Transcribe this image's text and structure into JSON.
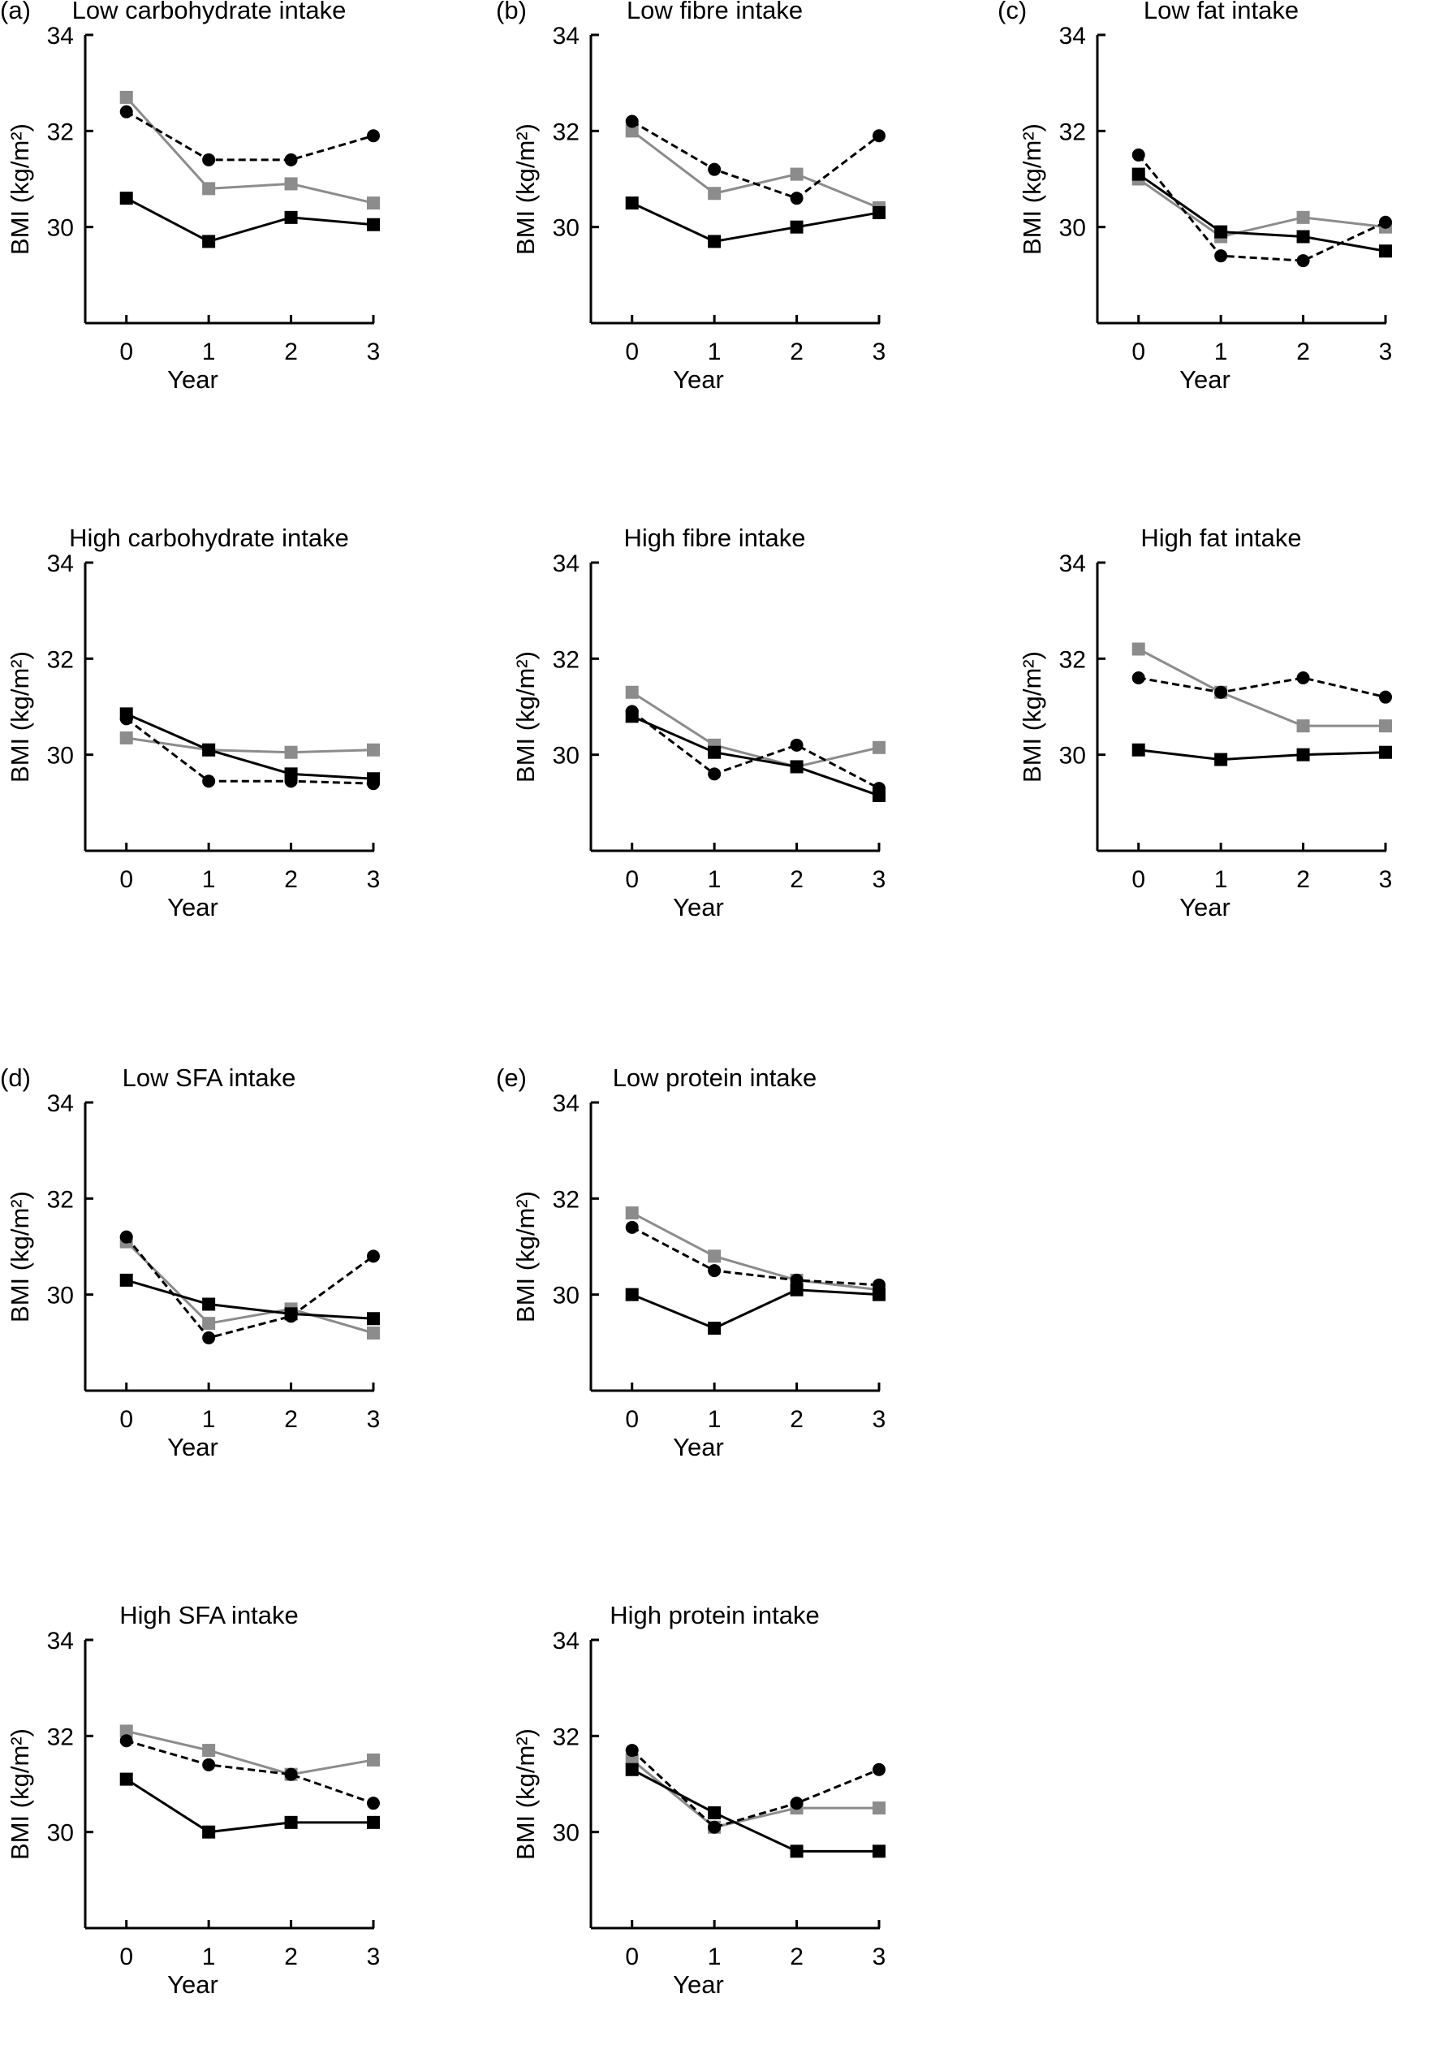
{
  "chart_data": [
    {
      "type": "line",
      "panel_label": "(a)",
      "title": "Low carbohydrate intake",
      "xlabel": "Year",
      "ylabel": "BMI (kg/m2)",
      "x": [
        0,
        1,
        2,
        3
      ],
      "xlim": [
        -0.5,
        3
      ],
      "ylim": [
        28,
        34
      ],
      "yticks": [
        30,
        32,
        34
      ],
      "grid": false,
      "series": [
        {
          "style": "black-circle-dashed",
          "values": [
            32.4,
            31.4,
            31.4,
            31.9
          ]
        },
        {
          "style": "grey-square-solid",
          "values": [
            32.7,
            30.8,
            30.9,
            30.5
          ]
        },
        {
          "style": "black-square-solid",
          "values": [
            30.6,
            29.7,
            30.2,
            30.05
          ]
        }
      ]
    },
    {
      "type": "line",
      "panel_label": "(b)",
      "title": "Low fibre intake",
      "xlabel": "Year",
      "ylabel": "BMI (kg/m2)",
      "x": [
        0,
        1,
        2,
        3
      ],
      "xlim": [
        -0.5,
        3
      ],
      "ylim": [
        28,
        34
      ],
      "yticks": [
        30,
        32,
        34
      ],
      "grid": false,
      "series": [
        {
          "style": "black-circle-dashed",
          "values": [
            32.2,
            31.2,
            30.6,
            31.9
          ]
        },
        {
          "style": "grey-square-solid",
          "values": [
            32.0,
            30.7,
            31.1,
            30.4
          ]
        },
        {
          "style": "black-square-solid",
          "values": [
            30.5,
            29.7,
            30.0,
            30.3
          ]
        }
      ]
    },
    {
      "type": "line",
      "panel_label": "(c)",
      "title": "Low fat intake",
      "xlabel": "Year",
      "ylabel": "BMI (kg/m2)",
      "x": [
        0,
        1,
        2,
        3
      ],
      "xlim": [
        -0.5,
        3
      ],
      "ylim": [
        28,
        34
      ],
      "yticks": [
        30,
        32,
        34
      ],
      "grid": false,
      "series": [
        {
          "style": "black-circle-dashed",
          "values": [
            31.5,
            29.4,
            29.3,
            30.1
          ]
        },
        {
          "style": "grey-square-solid",
          "values": [
            31.0,
            29.8,
            30.2,
            30.0
          ]
        },
        {
          "style": "black-square-solid",
          "values": [
            31.1,
            29.9,
            29.8,
            29.5
          ]
        }
      ]
    },
    {
      "type": "line",
      "panel_label": "",
      "title": "High carbohydrate intake",
      "xlabel": "Year",
      "ylabel": "BMI (kg/m2)",
      "x": [
        0,
        1,
        2,
        3
      ],
      "xlim": [
        -0.5,
        3
      ],
      "ylim": [
        28,
        34
      ],
      "yticks": [
        30,
        32,
        34
      ],
      "grid": false,
      "series": [
        {
          "style": "black-circle-dashed",
          "values": [
            30.75,
            29.45,
            29.45,
            29.4
          ]
        },
        {
          "style": "grey-square-solid",
          "values": [
            30.35,
            30.1,
            30.05,
            30.1
          ]
        },
        {
          "style": "black-square-solid",
          "values": [
            30.85,
            30.1,
            29.6,
            29.5
          ]
        }
      ]
    },
    {
      "type": "line",
      "panel_label": "",
      "title": "High fibre intake",
      "xlabel": "Year",
      "ylabel": "BMI (kg/m2)",
      "x": [
        0,
        1,
        2,
        3
      ],
      "xlim": [
        -0.5,
        3
      ],
      "ylim": [
        28,
        34
      ],
      "yticks": [
        30,
        32,
        34
      ],
      "grid": false,
      "series": [
        {
          "style": "black-circle-dashed",
          "values": [
            30.9,
            29.6,
            30.2,
            29.3
          ]
        },
        {
          "style": "grey-square-solid",
          "values": [
            31.3,
            30.2,
            29.75,
            30.15
          ]
        },
        {
          "style": "black-square-solid",
          "values": [
            30.8,
            30.05,
            29.75,
            29.15
          ]
        }
      ]
    },
    {
      "type": "line",
      "panel_label": "",
      "title": "High fat intake",
      "xlabel": "Year",
      "ylabel": "BMI (kg/m2)",
      "x": [
        0,
        1,
        2,
        3
      ],
      "xlim": [
        -0.5,
        3
      ],
      "ylim": [
        28,
        34
      ],
      "yticks": [
        30,
        32,
        34
      ],
      "grid": false,
      "series": [
        {
          "style": "black-circle-dashed",
          "values": [
            31.6,
            31.3,
            31.6,
            31.2
          ]
        },
        {
          "style": "grey-square-solid",
          "values": [
            32.2,
            31.3,
            30.6,
            30.6
          ]
        },
        {
          "style": "black-square-solid",
          "values": [
            30.1,
            29.9,
            30.0,
            30.05
          ]
        }
      ]
    },
    {
      "type": "line",
      "panel_label": "(d)",
      "title": "Low SFA intake",
      "xlabel": "Year",
      "ylabel": "BMI (kg/m2)",
      "x": [
        0,
        1,
        2,
        3
      ],
      "xlim": [
        -0.5,
        3
      ],
      "ylim": [
        28,
        34
      ],
      "yticks": [
        30,
        32,
        34
      ],
      "grid": false,
      "series": [
        {
          "style": "black-circle-dashed",
          "values": [
            31.2,
            29.1,
            29.55,
            30.8
          ]
        },
        {
          "style": "grey-square-solid",
          "values": [
            31.1,
            29.4,
            29.7,
            29.2
          ]
        },
        {
          "style": "black-square-solid",
          "values": [
            30.3,
            29.8,
            29.6,
            29.5
          ]
        }
      ]
    },
    {
      "type": "line",
      "panel_label": "(e)",
      "title": "Low protein intake",
      "xlabel": "Year",
      "ylabel": "BMI (kg/m2)",
      "x": [
        0,
        1,
        2,
        3
      ],
      "xlim": [
        -0.5,
        3
      ],
      "ylim": [
        28,
        34
      ],
      "yticks": [
        30,
        32,
        34
      ],
      "grid": false,
      "series": [
        {
          "style": "black-circle-dashed",
          "values": [
            31.4,
            30.5,
            30.3,
            30.2
          ]
        },
        {
          "style": "grey-square-solid",
          "values": [
            31.7,
            30.8,
            30.3,
            30.1
          ]
        },
        {
          "style": "black-square-solid",
          "values": [
            30.0,
            29.3,
            30.1,
            30.0
          ]
        }
      ]
    },
    {
      "type": "line",
      "panel_label": "",
      "title": "High SFA intake",
      "xlabel": "Year",
      "ylabel": "BMI (kg/m2)",
      "x": [
        0,
        1,
        2,
        3
      ],
      "xlim": [
        -0.5,
        3
      ],
      "ylim": [
        28,
        34
      ],
      "yticks": [
        30,
        32,
        34
      ],
      "grid": false,
      "series": [
        {
          "style": "black-circle-dashed",
          "values": [
            31.9,
            31.4,
            31.2,
            30.6
          ]
        },
        {
          "style": "grey-square-solid",
          "values": [
            32.1,
            31.7,
            31.2,
            31.5
          ]
        },
        {
          "style": "black-square-solid",
          "values": [
            31.1,
            30.0,
            30.2,
            30.2
          ]
        }
      ]
    },
    {
      "type": "line",
      "panel_label": "",
      "title": "High protein intake",
      "xlabel": "Year",
      "ylabel": "BMI (kg/m2)",
      "x": [
        0,
        1,
        2,
        3
      ],
      "xlim": [
        -0.5,
        3
      ],
      "ylim": [
        28,
        34
      ],
      "yticks": [
        30,
        32,
        34
      ],
      "grid": false,
      "series": [
        {
          "style": "black-circle-dashed",
          "values": [
            31.7,
            30.1,
            30.6,
            31.3
          ]
        },
        {
          "style": "grey-square-solid",
          "values": [
            31.5,
            30.1,
            30.5,
            30.5
          ]
        },
        {
          "style": "black-square-solid",
          "values": [
            31.3,
            30.4,
            29.6,
            29.6
          ]
        }
      ]
    }
  ],
  "colors": {
    "black": "#000000",
    "grey": "#8c8c8c"
  }
}
